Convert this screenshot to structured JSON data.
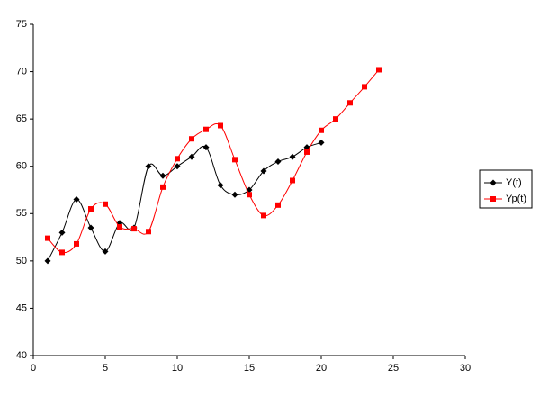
{
  "chart_data": {
    "type": "line",
    "smooth": true,
    "xlim": [
      0,
      30
    ],
    "xticks": [
      0,
      5,
      10,
      15,
      20,
      25,
      30
    ],
    "ylim": [
      40,
      75
    ],
    "yticks": [
      40,
      45,
      50,
      55,
      60,
      65,
      70,
      75
    ],
    "grid": false,
    "legend": "right",
    "series": [
      {
        "name": "Y(t)",
        "color": "#000000",
        "marker": "diamond",
        "x": [
          1,
          2,
          3,
          4,
          5,
          6,
          7,
          8,
          9,
          10,
          11,
          12,
          13,
          14,
          15,
          16,
          17,
          18,
          19,
          20
        ],
        "values": [
          50,
          53,
          56.5,
          53.5,
          51,
          54,
          53.5,
          60,
          59,
          60,
          61,
          62,
          58,
          57,
          57.5,
          59.5,
          60.5,
          61,
          62,
          62.5
        ]
      },
      {
        "name": "Yp(t)",
        "color": "#ff0000",
        "marker": "square",
        "x": [
          1,
          2,
          3,
          4,
          5,
          6,
          7,
          8,
          9,
          10,
          11,
          12,
          13,
          14,
          15,
          16,
          17,
          18,
          19,
          20,
          21,
          22,
          23,
          24
        ],
        "values": [
          52.4,
          50.9,
          51.8,
          55.5,
          56,
          53.6,
          53.4,
          53.1,
          57.8,
          60.8,
          62.9,
          63.9,
          64.3,
          60.7,
          57,
          54.8,
          55.9,
          58.5,
          61.5,
          63.8,
          65,
          66.7,
          68.4,
          70.2
        ]
      }
    ]
  }
}
